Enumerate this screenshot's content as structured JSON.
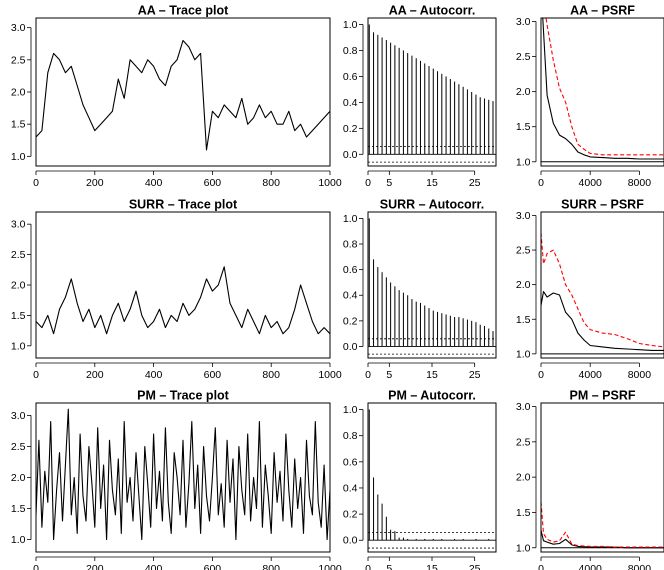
{
  "colors": {
    "black": "#000000",
    "red": "#ff0000",
    "background": "#ffffff"
  },
  "chart_data": [
    {
      "id": "aa-trace",
      "type": "line",
      "title": "AA – Trace plot",
      "xlim": [
        0,
        1000
      ],
      "ylim": [
        0.85,
        3.15
      ],
      "xticks": [
        "0",
        "200",
        "400",
        "600",
        "800",
        "1000"
      ],
      "yticks": [
        "1.0",
        "1.5",
        "2.0",
        "2.5",
        "3.0"
      ],
      "series": [
        {
          "color": "#000000",
          "x": [
            0,
            20,
            40,
            60,
            80,
            100,
            120,
            140,
            160,
            180,
            200,
            220,
            240,
            260,
            280,
            300,
            320,
            340,
            360,
            380,
            400,
            420,
            440,
            460,
            480,
            500,
            520,
            540,
            560,
            580,
            600,
            620,
            640,
            660,
            680,
            700,
            720,
            740,
            760,
            780,
            800,
            820,
            840,
            860,
            880,
            900,
            920,
            940,
            960,
            980,
            1000
          ],
          "values": [
            1.3,
            1.4,
            2.3,
            2.6,
            2.5,
            2.3,
            2.4,
            2.1,
            1.8,
            1.6,
            1.4,
            1.5,
            1.6,
            1.7,
            2.2,
            1.9,
            2.5,
            2.4,
            2.3,
            2.5,
            2.4,
            2.2,
            2.1,
            2.4,
            2.5,
            2.8,
            2.7,
            2.5,
            2.6,
            1.1,
            1.7,
            1.6,
            1.8,
            1.7,
            1.6,
            1.9,
            1.5,
            1.6,
            1.8,
            1.6,
            1.7,
            1.5,
            1.5,
            1.7,
            1.4,
            1.5,
            1.3,
            1.4,
            1.5,
            1.6,
            1.7
          ]
        }
      ]
    },
    {
      "id": "aa-acf",
      "type": "bar",
      "title": "AA – Autocorr.",
      "xlim": [
        0,
        30
      ],
      "ylim": [
        -0.09,
        1.05
      ],
      "xticks": [
        "0",
        "5",
        "15",
        "25"
      ],
      "yticks": [
        "0.0",
        "0.2",
        "0.4",
        "0.6",
        "0.8",
        "1.0"
      ],
      "confidence_band": [
        -0.06,
        0.06
      ],
      "lags": [
        0,
        1,
        2,
        3,
        4,
        5,
        6,
        7,
        8,
        9,
        10,
        11,
        12,
        13,
        14,
        15,
        16,
        17,
        18,
        19,
        20,
        21,
        22,
        23,
        24,
        25,
        26,
        27,
        28,
        29
      ],
      "values": [
        1.0,
        0.94,
        0.92,
        0.9,
        0.88,
        0.86,
        0.84,
        0.82,
        0.8,
        0.78,
        0.76,
        0.74,
        0.72,
        0.7,
        0.68,
        0.66,
        0.64,
        0.62,
        0.6,
        0.58,
        0.56,
        0.54,
        0.52,
        0.5,
        0.48,
        0.46,
        0.44,
        0.43,
        0.42,
        0.41
      ]
    },
    {
      "id": "aa-psrf",
      "type": "line",
      "title": "AA – PSRF",
      "xlim": [
        0,
        10000
      ],
      "ylim": [
        0.94,
        3.05
      ],
      "xticks": [
        "0",
        "4000",
        "8000"
      ],
      "yticks": [
        "1.0",
        "1.5",
        "2.0",
        "2.5",
        "3.0"
      ],
      "reference_line": 1.0,
      "series": [
        {
          "color": "#000000",
          "style": "solid",
          "x": [
            0,
            500,
            1000,
            1500,
            2000,
            2500,
            3000,
            3500,
            4000,
            5000,
            6000,
            7000,
            8000,
            9000,
            10000
          ],
          "values": [
            3.5,
            1.95,
            1.55,
            1.38,
            1.33,
            1.25,
            1.14,
            1.1,
            1.07,
            1.06,
            1.05,
            1.05,
            1.04,
            1.04,
            1.04
          ]
        },
        {
          "color": "#ff0000",
          "style": "dashed",
          "x": [
            0,
            500,
            1000,
            1500,
            2000,
            2500,
            3000,
            3500,
            4000,
            5000,
            6000,
            7000,
            8000,
            9000,
            10000
          ],
          "values": [
            3.5,
            2.95,
            2.45,
            2.05,
            1.85,
            1.5,
            1.25,
            1.18,
            1.12,
            1.1,
            1.1,
            1.1,
            1.1,
            1.1,
            1.1
          ]
        }
      ]
    },
    {
      "id": "surr-trace",
      "type": "line",
      "title": "SURR – Trace plot",
      "xlim": [
        0,
        1000
      ],
      "ylim": [
        0.8,
        3.2
      ],
      "xticks": [
        "0",
        "200",
        "400",
        "600",
        "800",
        "1000"
      ],
      "yticks": [
        "1.0",
        "1.5",
        "2.0",
        "2.5",
        "3.0"
      ],
      "series": [
        {
          "color": "#000000",
          "x": [
            0,
            20,
            40,
            60,
            80,
            100,
            120,
            140,
            160,
            180,
            200,
            220,
            240,
            260,
            280,
            300,
            320,
            340,
            360,
            380,
            400,
            420,
            440,
            460,
            480,
            500,
            520,
            540,
            560,
            580,
            600,
            620,
            640,
            660,
            680,
            700,
            720,
            740,
            760,
            780,
            800,
            820,
            840,
            860,
            880,
            900,
            920,
            940,
            960,
            980,
            1000
          ],
          "values": [
            1.4,
            1.3,
            1.5,
            1.2,
            1.6,
            1.8,
            2.1,
            1.7,
            1.4,
            1.6,
            1.3,
            1.5,
            1.2,
            1.5,
            1.7,
            1.4,
            1.6,
            1.9,
            1.5,
            1.3,
            1.4,
            1.6,
            1.3,
            1.5,
            1.4,
            1.7,
            1.5,
            1.6,
            1.8,
            2.1,
            1.9,
            2.0,
            2.3,
            1.7,
            1.5,
            1.3,
            1.6,
            1.4,
            1.2,
            1.5,
            1.3,
            1.4,
            1.2,
            1.3,
            1.6,
            2.0,
            1.7,
            1.4,
            1.2,
            1.3,
            1.2
          ]
        }
      ]
    },
    {
      "id": "surr-acf",
      "type": "bar",
      "title": "SURR – Autocorr.",
      "xlim": [
        0,
        30
      ],
      "ylim": [
        -0.09,
        1.05
      ],
      "xticks": [
        "0",
        "5",
        "15",
        "25"
      ],
      "yticks": [
        "0.0",
        "0.2",
        "0.4",
        "0.6",
        "0.8",
        "1.0"
      ],
      "confidence_band": [
        -0.06,
        0.06
      ],
      "lags": [
        0,
        1,
        2,
        3,
        4,
        5,
        6,
        7,
        8,
        9,
        10,
        11,
        12,
        13,
        14,
        15,
        16,
        17,
        18,
        19,
        20,
        21,
        22,
        23,
        24,
        25,
        26,
        27,
        28,
        29
      ],
      "values": [
        1.0,
        0.68,
        0.62,
        0.58,
        0.54,
        0.5,
        0.47,
        0.44,
        0.42,
        0.4,
        0.37,
        0.35,
        0.34,
        0.32,
        0.3,
        0.28,
        0.27,
        0.26,
        0.25,
        0.24,
        0.23,
        0.23,
        0.22,
        0.21,
        0.2,
        0.19,
        0.17,
        0.16,
        0.14,
        0.12
      ]
    },
    {
      "id": "surr-psrf",
      "type": "line",
      "title": "SURR – PSRF",
      "xlim": [
        0,
        10000
      ],
      "ylim": [
        0.94,
        3.05
      ],
      "xticks": [
        "0",
        "4000",
        "8000"
      ],
      "yticks": [
        "1.0",
        "1.5",
        "2.0",
        "2.5",
        "3.0"
      ],
      "reference_line": 1.0,
      "series": [
        {
          "color": "#000000",
          "style": "solid",
          "x": [
            0,
            200,
            500,
            1000,
            1500,
            2000,
            2500,
            3000,
            3500,
            4000,
            5000,
            6000,
            7000,
            8000,
            9000,
            10000
          ],
          "values": [
            1.7,
            1.9,
            1.82,
            1.88,
            1.85,
            1.6,
            1.5,
            1.3,
            1.2,
            1.12,
            1.1,
            1.08,
            1.07,
            1.06,
            1.05,
            1.05
          ]
        },
        {
          "color": "#ff0000",
          "style": "dashed",
          "x": [
            0,
            200,
            500,
            1000,
            1500,
            2000,
            2500,
            3000,
            3500,
            4000,
            5000,
            6000,
            7000,
            8000,
            9000,
            10000
          ],
          "values": [
            2.75,
            2.3,
            2.45,
            2.5,
            2.3,
            2.0,
            1.85,
            1.65,
            1.45,
            1.35,
            1.3,
            1.28,
            1.22,
            1.15,
            1.12,
            1.1
          ]
        }
      ]
    },
    {
      "id": "pm-trace",
      "type": "line",
      "title": "PM – Trace plot",
      "xlim": [
        0,
        1000
      ],
      "ylim": [
        0.8,
        3.2
      ],
      "xticks": [
        "0",
        "200",
        "400",
        "600",
        "800",
        "1000"
      ],
      "yticks": [
        "1.0",
        "1.5",
        "2.0",
        "2.5",
        "3.0"
      ],
      "series": [
        {
          "color": "#000000",
          "x": [
            0,
            10,
            20,
            30,
            40,
            50,
            60,
            70,
            80,
            90,
            100,
            110,
            120,
            130,
            140,
            150,
            160,
            170,
            180,
            190,
            200,
            210,
            220,
            230,
            240,
            250,
            260,
            270,
            280,
            290,
            300,
            310,
            320,
            330,
            340,
            350,
            360,
            370,
            380,
            390,
            400,
            410,
            420,
            430,
            440,
            450,
            460,
            470,
            480,
            490,
            500,
            510,
            520,
            530,
            540,
            550,
            560,
            570,
            580,
            590,
            600,
            610,
            620,
            630,
            640,
            650,
            660,
            670,
            680,
            690,
            700,
            710,
            720,
            730,
            740,
            750,
            760,
            770,
            780,
            790,
            800,
            810,
            820,
            830,
            840,
            850,
            860,
            870,
            880,
            890,
            900,
            910,
            920,
            930,
            940,
            950,
            960,
            970,
            980,
            990,
            1000
          ],
          "values": [
            1.4,
            2.6,
            1.2,
            2.1,
            1.6,
            2.9,
            1.0,
            1.8,
            2.4,
            1.3,
            2.2,
            3.1,
            1.4,
            2.0,
            1.1,
            2.7,
            1.7,
            1.3,
            2.5,
            1.9,
            1.2,
            2.8,
            1.5,
            2.2,
            1.0,
            2.6,
            1.8,
            1.4,
            2.3,
            1.1,
            2.9,
            1.6,
            2.0,
            1.3,
            2.4,
            1.7,
            1.0,
            2.5,
            1.9,
            1.2,
            2.7,
            1.5,
            2.1,
            1.3,
            2.8,
            1.6,
            1.1,
            2.4,
            2.0,
            1.4,
            2.6,
            1.2,
            1.9,
            2.9,
            1.5,
            2.2,
            1.1,
            2.5,
            1.7,
            1.3,
            2.0,
            2.8,
            1.4,
            1.9,
            1.2,
            2.6,
            1.6,
            2.3,
            1.0,
            2.5,
            1.8,
            1.4,
            2.7,
            1.3,
            2.0,
            1.5,
            2.9,
            1.2,
            2.2,
            1.7,
            1.1,
            2.4,
            1.6,
            2.1,
            1.3,
            2.7,
            1.8,
            1.2,
            2.3,
            1.5,
            2.0,
            1.1,
            2.6,
            1.7,
            1.4,
            2.9,
            1.6,
            1.2,
            2.2,
            1.0,
            1.8
          ]
        }
      ]
    },
    {
      "id": "pm-acf",
      "type": "bar",
      "title": "PM – Autocorr.",
      "xlim": [
        0,
        30
      ],
      "ylim": [
        -0.09,
        1.05
      ],
      "xticks": [
        "0",
        "5",
        "15",
        "25"
      ],
      "yticks": [
        "0.0",
        "0.2",
        "0.4",
        "0.6",
        "0.8",
        "1.0"
      ],
      "confidence_band": [
        -0.06,
        0.06
      ],
      "lags": [
        0,
        1,
        2,
        3,
        4,
        5,
        6,
        7,
        8,
        9,
        10,
        11,
        12,
        13,
        14,
        15,
        16,
        17,
        18,
        19,
        20,
        21,
        22,
        23,
        24,
        25,
        26,
        27,
        28,
        29
      ],
      "values": [
        1.0,
        0.48,
        0.35,
        0.28,
        0.18,
        0.08,
        0.07,
        0.02,
        0.02,
        0.01,
        0.0,
        0.01,
        0.0,
        0.01,
        0.0,
        0.01,
        0.0,
        0.01,
        0.0,
        0.0,
        0.01,
        0.0,
        0.01,
        0.0,
        0.0,
        0.01,
        0.0,
        0.0,
        0.01,
        0.0
      ]
    },
    {
      "id": "pm-psrf",
      "type": "line",
      "title": "PM – PSRF",
      "xlim": [
        0,
        10000
      ],
      "ylim": [
        0.94,
        3.05
      ],
      "xticks": [
        "0",
        "4000",
        "8000"
      ],
      "yticks": [
        "1.0",
        "1.5",
        "2.0",
        "2.5",
        "3.0"
      ],
      "reference_line": 1.0,
      "series": [
        {
          "color": "#000000",
          "style": "solid",
          "x": [
            0,
            200,
            500,
            1000,
            1500,
            2000,
            2500,
            3000,
            4000,
            5000,
            6000,
            7000,
            8000,
            9000,
            10000
          ],
          "values": [
            1.25,
            1.1,
            1.08,
            1.05,
            1.06,
            1.12,
            1.04,
            1.02,
            1.01,
            1.01,
            1.01,
            1.0,
            1.0,
            1.0,
            1.0
          ]
        },
        {
          "color": "#ff0000",
          "style": "dashed",
          "x": [
            0,
            200,
            500,
            1000,
            1500,
            2000,
            2500,
            3000,
            4000,
            5000,
            6000,
            7000,
            8000,
            9000,
            10000
          ],
          "values": [
            1.65,
            1.2,
            1.12,
            1.08,
            1.1,
            1.22,
            1.05,
            1.03,
            1.02,
            1.02,
            1.01,
            1.01,
            1.01,
            1.01,
            1.01
          ]
        }
      ]
    }
  ]
}
